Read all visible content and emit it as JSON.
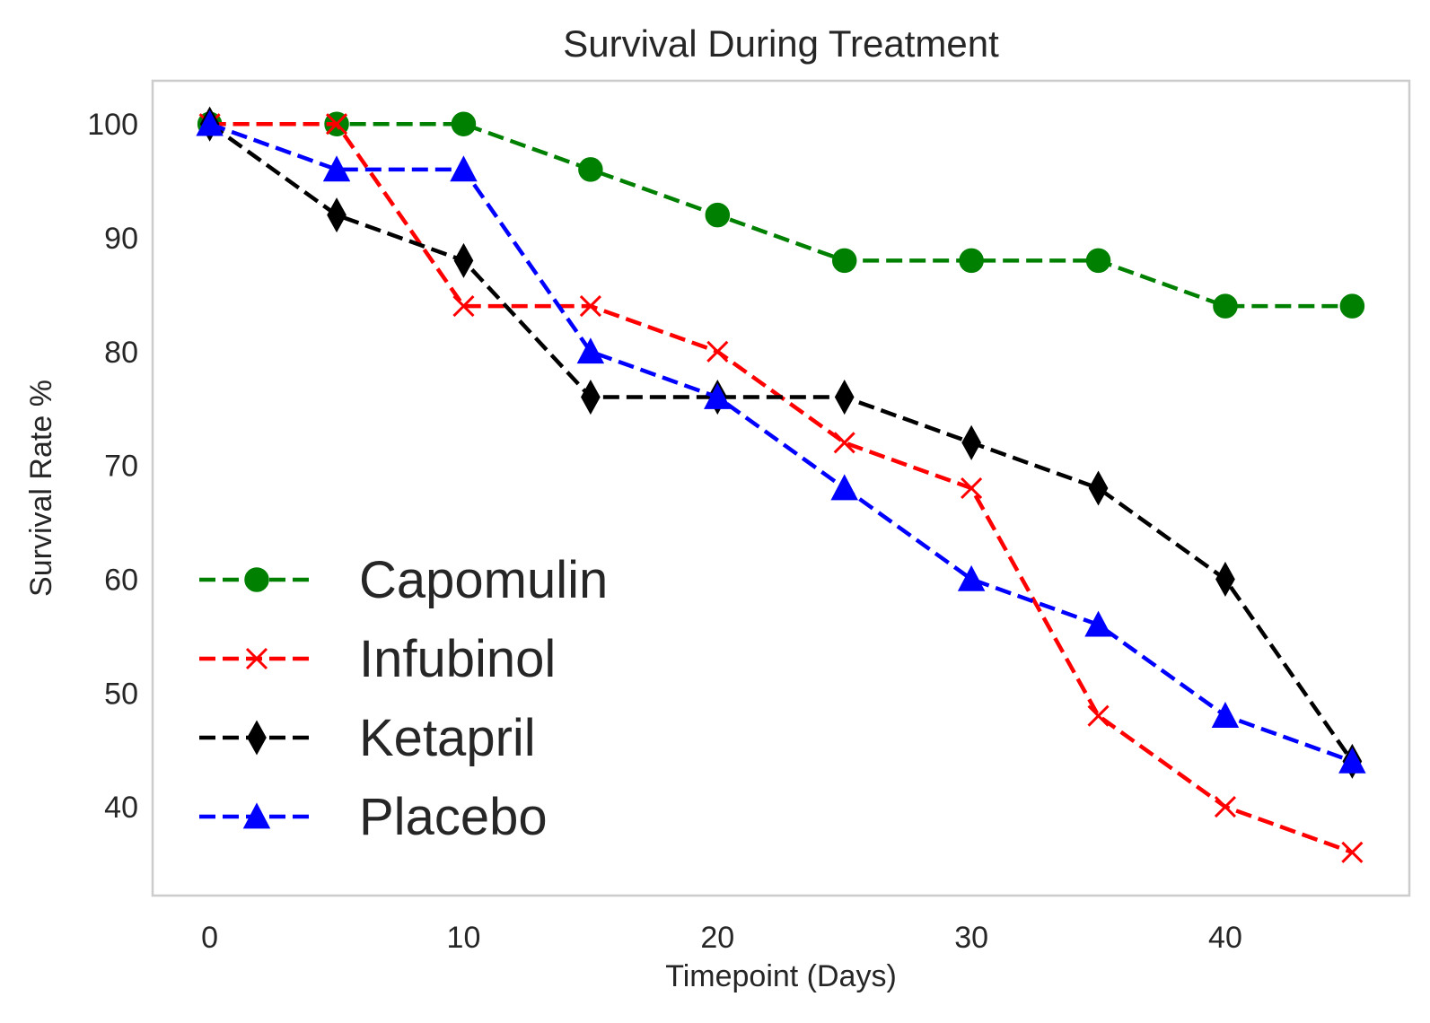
{
  "chart_data": {
    "type": "line",
    "title": "Survival During Treatment",
    "xlabel": "Timepoint (Days)",
    "ylabel": "Survival Rate %",
    "x": [
      0,
      5,
      10,
      15,
      20,
      25,
      30,
      35,
      40,
      45
    ],
    "xlim": [
      -2.25,
      47.25
    ],
    "ylim": [
      32.2,
      103.8
    ],
    "xticks": [
      0,
      10,
      20,
      30,
      40
    ],
    "yticks": [
      40,
      50,
      60,
      70,
      80,
      90,
      100
    ],
    "grid": false,
    "legend_position": "lower-left",
    "series": [
      {
        "name": "Capomulin",
        "color": "#008000",
        "marker": "circle",
        "linestyle": "dashed",
        "values": [
          100,
          100,
          100,
          96,
          92,
          88,
          88,
          88,
          84,
          84
        ]
      },
      {
        "name": "Infubinol",
        "color": "#ff0000",
        "marker": "x",
        "linestyle": "dashed",
        "values": [
          100,
          100,
          84,
          84,
          80,
          72,
          68,
          48,
          40,
          36
        ]
      },
      {
        "name": "Ketapril",
        "color": "#000000",
        "marker": "thin-diamond",
        "linestyle": "dashed",
        "values": [
          100,
          92,
          88,
          76,
          76,
          76,
          72,
          68,
          60,
          44
        ]
      },
      {
        "name": "Placebo",
        "color": "#0000ff",
        "marker": "triangle-up",
        "linestyle": "dashed",
        "values": [
          100,
          96,
          96,
          80,
          76,
          68,
          60,
          56,
          48,
          44
        ]
      }
    ]
  }
}
